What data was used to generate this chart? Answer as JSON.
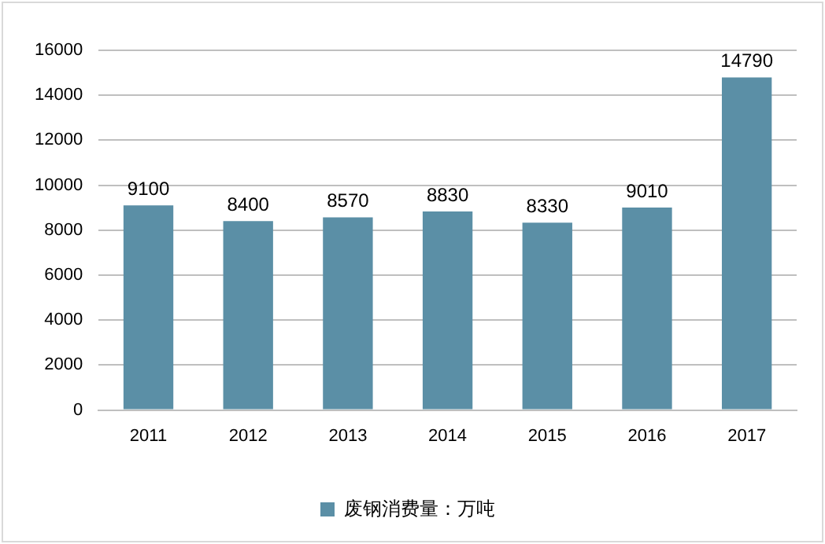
{
  "chart_data": {
    "type": "bar",
    "categories": [
      "2011",
      "2012",
      "2013",
      "2014",
      "2015",
      "2016",
      "2017"
    ],
    "series": [
      {
        "name": "废钢消费量：万吨",
        "color": "#5b8fa6",
        "values": [
          9100,
          8400,
          8570,
          8830,
          8330,
          9010,
          14790
        ]
      }
    ],
    "ylim": [
      0,
      16000
    ],
    "yticks": [
      0,
      2000,
      4000,
      6000,
      8000,
      10000,
      12000,
      14000,
      16000
    ],
    "grid": "y",
    "legend": "bottom",
    "data_labels": true
  }
}
